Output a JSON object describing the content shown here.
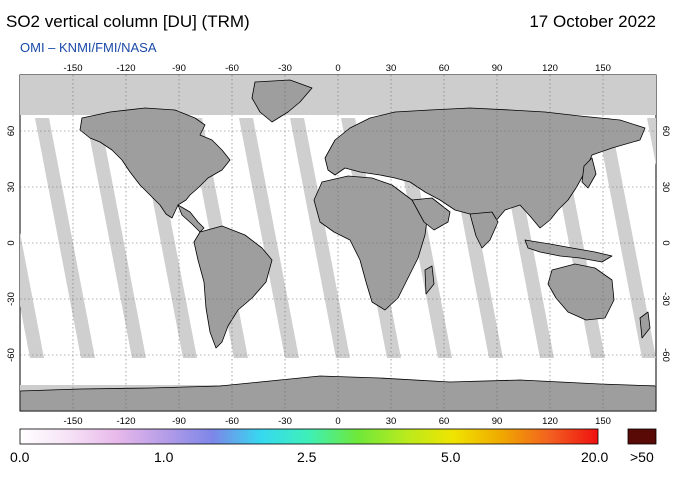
{
  "title": "SO2 vertical column [DU] (TRM)",
  "date": "17 October 2022",
  "credit": "OMI  –  KNMI/FMI/NASA",
  "colors": {
    "land": "#9e9e9e",
    "polar_cap": "#cdcdcd",
    "swath_gap": "#cfcfcf",
    "ocean_data": "#ffffff",
    "coast": "#000000",
    "over_range": "#5a0a06"
  },
  "map": {
    "projection": "equirectangular",
    "grid": true,
    "lon_ticks": [
      "-150",
      "-120",
      "-90",
      "-60",
      "-30",
      "0",
      "30",
      "60",
      "90",
      "120",
      "150"
    ],
    "lat_ticks": [
      "60",
      "30",
      "0",
      "-30",
      "-60"
    ]
  },
  "colorbar": {
    "labels": [
      "0.0",
      "1.0",
      "2.5",
      "5.0",
      "20.0"
    ],
    "over_label": ">50",
    "stops": [
      "#ffffff",
      "#f6e3f6",
      "#e8b9ea",
      "#b69de8",
      "#7d86e8",
      "#36d9f0",
      "#3ef0b8",
      "#6ee83a",
      "#b8ea1e",
      "#f0e400",
      "#f0a800",
      "#f26020",
      "#ef1010"
    ]
  }
}
